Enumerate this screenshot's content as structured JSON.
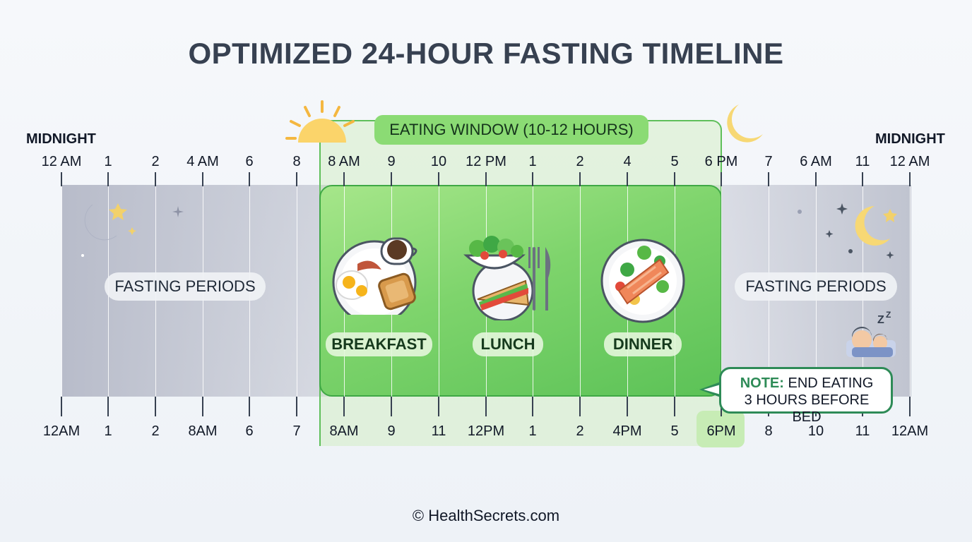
{
  "title": "OPTIMIZED 24-HOUR FASTING TIMELINE",
  "midnight_left": "MIDNIGHT",
  "midnight_right": "MIDNIGHT",
  "eating_window_label": "EATING WINDOW (10-12 HOURS)",
  "top_ticks": [
    "12 AM",
    "1",
    "2",
    "4 AM",
    "6",
    "8",
    "8 AM",
    "9",
    "10",
    "12 PM",
    "1",
    "2",
    "4",
    "5",
    "6 PM",
    "7",
    "6 AM",
    "11",
    "12 AM"
  ],
  "bottom_ticks": [
    "12AM",
    "1",
    "2",
    "8AM",
    "6",
    "7",
    "8AM",
    "9",
    "11",
    "12PM",
    "1",
    "2",
    "4PM",
    "5",
    "6PM",
    "8",
    "10",
    "11",
    "12AM"
  ],
  "fasting_left_label": "FASTING PERIODS",
  "fasting_right_label": "FASTING PERIODS",
  "meals": {
    "breakfast": "BREAKFAST",
    "lunch": "LUNCH",
    "dinner": "DINNER"
  },
  "note": {
    "prefix": "NOTE:",
    "line1": "END EATING",
    "line2": "3 HOURS BEFORE BED"
  },
  "footer": "© HealthSecrets.com",
  "colors": {
    "eating_green": "#7ed46c",
    "fasting_gray": "#c8cbd6",
    "note_border": "#2e8b57"
  }
}
